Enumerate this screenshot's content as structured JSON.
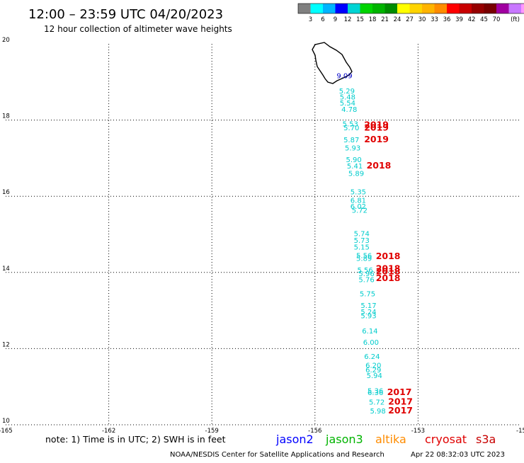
{
  "header": {
    "title": "12:00 – 23:59 UTC 04/20/2023",
    "subtitle": "12 hour collection of altimeter wave heights"
  },
  "legend": {
    "colors": [
      "#808080",
      "#00ffff",
      "#00b4ff",
      "#0000ff",
      "#00d4d4",
      "#00d400",
      "#00b400",
      "#008c00",
      "#ffff00",
      "#ffd400",
      "#ffb400",
      "#ff8c00",
      "#ff0000",
      "#c80000",
      "#960000",
      "#780000",
      "#a000a0",
      "#c878ff",
      "#ff96ff",
      "#ff78c8",
      "#000000"
    ],
    "labels": [
      "3",
      "6",
      "9",
      "12",
      "15",
      "18",
      "21",
      "24",
      "27",
      "30",
      "33",
      "36",
      "39",
      "42",
      "45",
      "70",
      "(ft)"
    ]
  },
  "map": {
    "lon_range": [
      -165,
      -150
    ],
    "lat_range": [
      10,
      20
    ],
    "x_ticks": [
      "-165",
      "-162",
      "-159",
      "-156",
      "-153",
      "-15"
    ],
    "y_ticks": [
      "20",
      "18",
      "16",
      "14",
      "12",
      "10"
    ],
    "land": "big-island-coastline"
  },
  "wave_heights": [
    {
      "label": "9.09",
      "lat": 19.1,
      "lon": -155.37,
      "color": "#0000c8"
    },
    {
      "label": "5.29",
      "lat": 18.7,
      "lon": -155.3,
      "color": "#00cccc"
    },
    {
      "label": "5.48",
      "lat": 18.54,
      "lon": -155.28,
      "color": "#00cccc"
    },
    {
      "label": "5.54",
      "lat": 18.38,
      "lon": -155.28,
      "color": "#00cccc"
    },
    {
      "label": "4.78",
      "lat": 18.22,
      "lon": -155.23,
      "color": "#00cccc"
    },
    {
      "label": "5.53",
      "lat": 17.83,
      "lon": -155.2,
      "color": "#00cccc"
    },
    {
      "label": "5.70",
      "lat": 17.73,
      "lon": -155.17,
      "color": "#00cccc"
    },
    {
      "label": "5.87",
      "lat": 17.42,
      "lon": -155.17,
      "color": "#00cccc"
    },
    {
      "label": "5.93",
      "lat": 17.2,
      "lon": -155.13,
      "color": "#00cccc"
    },
    {
      "label": "5.90",
      "lat": 16.9,
      "lon": -155.1,
      "color": "#00cccc"
    },
    {
      "label": "5.41",
      "lat": 16.73,
      "lon": -155.07,
      "color": "#00cccc"
    },
    {
      "label": "5.89",
      "lat": 16.53,
      "lon": -155.03,
      "color": "#00cccc"
    },
    {
      "label": "5.35",
      "lat": 16.05,
      "lon": -154.97,
      "color": "#00cccc"
    },
    {
      "label": "6.81",
      "lat": 15.83,
      "lon": -154.97,
      "color": "#00cccc"
    },
    {
      "label": "6.02",
      "lat": 15.67,
      "lon": -154.97,
      "color": "#00cccc"
    },
    {
      "label": "5.72",
      "lat": 15.57,
      "lon": -154.93,
      "color": "#00cccc"
    },
    {
      "label": "5.74",
      "lat": 14.95,
      "lon": -154.87,
      "color": "#00cccc"
    },
    {
      "label": "5.73",
      "lat": 14.78,
      "lon": -154.87,
      "color": "#00cccc"
    },
    {
      "label": "5.15",
      "lat": 14.6,
      "lon": -154.87,
      "color": "#00cccc"
    },
    {
      "label": "5.56",
      "lat": 14.38,
      "lon": -154.8,
      "color": "#00cccc"
    },
    {
      "label": "5.89",
      "lat": 14.3,
      "lon": -154.8,
      "color": "#00cccc"
    },
    {
      "label": "5.56",
      "lat": 14.0,
      "lon": -154.77,
      "color": "#00cccc"
    },
    {
      "label": "5.96",
      "lat": 13.9,
      "lon": -154.73,
      "color": "#00cccc"
    },
    {
      "label": "5.76",
      "lat": 13.75,
      "lon": -154.73,
      "color": "#00cccc"
    },
    {
      "label": "5.75",
      "lat": 13.37,
      "lon": -154.7,
      "color": "#00cccc"
    },
    {
      "label": "5.17",
      "lat": 13.07,
      "lon": -154.67,
      "color": "#00cccc"
    },
    {
      "label": "5.24",
      "lat": 12.9,
      "lon": -154.67,
      "color": "#00cccc"
    },
    {
      "label": "5.93",
      "lat": 12.8,
      "lon": -154.67,
      "color": "#00cccc"
    },
    {
      "label": "6.14",
      "lat": 12.4,
      "lon": -154.63,
      "color": "#00cccc"
    },
    {
      "label": "6.00",
      "lat": 12.1,
      "lon": -154.6,
      "color": "#00cccc"
    },
    {
      "label": "6.24",
      "lat": 11.73,
      "lon": -154.57,
      "color": "#00cccc"
    },
    {
      "label": "6.20",
      "lat": 11.5,
      "lon": -154.53,
      "color": "#00cccc"
    },
    {
      "label": "6.29",
      "lat": 11.38,
      "lon": -154.53,
      "color": "#00cccc"
    },
    {
      "label": "5.94",
      "lat": 11.23,
      "lon": -154.5,
      "color": "#00cccc"
    },
    {
      "label": "5.36",
      "lat": 10.83,
      "lon": -154.47,
      "color": "#00cccc"
    },
    {
      "label": "6.36",
      "lat": 10.78,
      "lon": -154.47,
      "color": "#00cccc"
    },
    {
      "label": "5.72",
      "lat": 10.53,
      "lon": -154.43,
      "color": "#00cccc"
    },
    {
      "label": "5.98",
      "lat": 10.3,
      "lon": -154.4,
      "color": "#00cccc"
    }
  ],
  "dates": [
    {
      "label": "2019",
      "lat": 17.8,
      "lon": -154.57
    },
    {
      "label": "2019",
      "lat": 17.72,
      "lon": -154.57
    },
    {
      "label": "2019",
      "lat": 17.42,
      "lon": -154.57
    },
    {
      "label": "2018",
      "lat": 16.73,
      "lon": -154.5
    },
    {
      "label": "2018",
      "lat": 14.35,
      "lon": -154.23
    },
    {
      "label": "2018",
      "lat": 14.02,
      "lon": -154.23
    },
    {
      "label": "2018",
      "lat": 13.95,
      "lon": -154.23
    },
    {
      "label": "2018",
      "lat": 13.77,
      "lon": -154.23
    },
    {
      "label": "2017",
      "lat": 10.78,
      "lon": -153.9
    },
    {
      "label": "2017",
      "lat": 10.53,
      "lon": -153.87
    },
    {
      "label": "2017",
      "lat": 10.3,
      "lon": -153.87
    }
  ],
  "footer": {
    "note": "note:  1) Time is in UTC;  2) SWH is in feet",
    "satellites": [
      {
        "name": "jason2",
        "color": "#0000ff"
      },
      {
        "name": "jason3",
        "color": "#00b400"
      },
      {
        "name": "altika",
        "color": "#ff8c00"
      },
      {
        "name": "cryosat",
        "color": "#e00000"
      },
      {
        "name": "s3a",
        "color": "#c80000"
      }
    ],
    "credit": "NOAA/NESDIS Center for Satellite Applications and Research",
    "timestamp": "Apr 22 08:32:03 UTC 2023"
  }
}
